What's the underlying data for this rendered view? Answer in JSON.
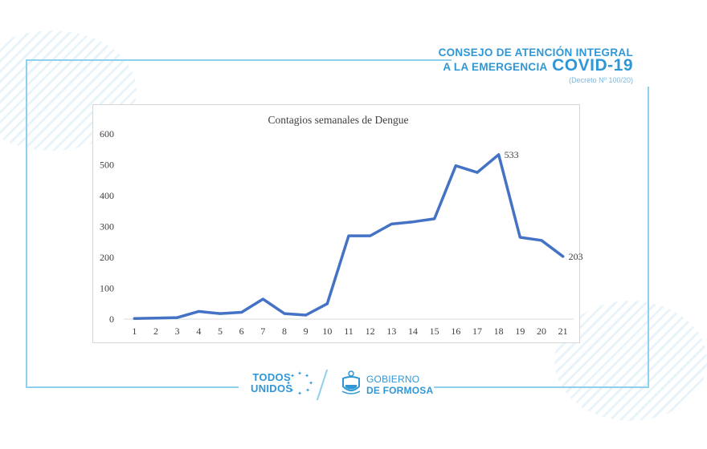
{
  "header": {
    "line1": "CONSEJO DE ATENCIÓN INTEGRAL",
    "line2_prefix": "A LA EMERGENCIA",
    "line2_covid": "COVID-19",
    "decree": "(Decreto Nº 100/20)"
  },
  "footer": {
    "todos": "TODOS",
    "unidos": "UNIDOS",
    "gobierno": "GOBIERNO",
    "de_formosa": "DE FORMOSA"
  },
  "colors": {
    "accent": "#2f97d6",
    "line": "#4472c4"
  },
  "chart_data": {
    "type": "line",
    "title": "Contagios semanales de Dengue",
    "xlabel": "",
    "ylabel": "",
    "x": [
      1,
      2,
      3,
      4,
      5,
      6,
      7,
      8,
      9,
      10,
      11,
      12,
      13,
      14,
      15,
      16,
      17,
      18,
      19,
      20,
      21
    ],
    "series": [
      {
        "values": [
          2,
          3,
          5,
          25,
          18,
          22,
          65,
          18,
          13,
          50,
          270,
          270,
          308,
          315,
          325,
          497,
          475,
          533,
          265,
          255,
          203
        ]
      }
    ],
    "ylim": [
      0,
      600
    ],
    "yticks": [
      0,
      100,
      200,
      300,
      400,
      500,
      600
    ],
    "data_labels": [
      {
        "x": 18,
        "text": "533"
      },
      {
        "x": 21,
        "text": "203"
      }
    ],
    "grid": false,
    "legend": "none"
  }
}
